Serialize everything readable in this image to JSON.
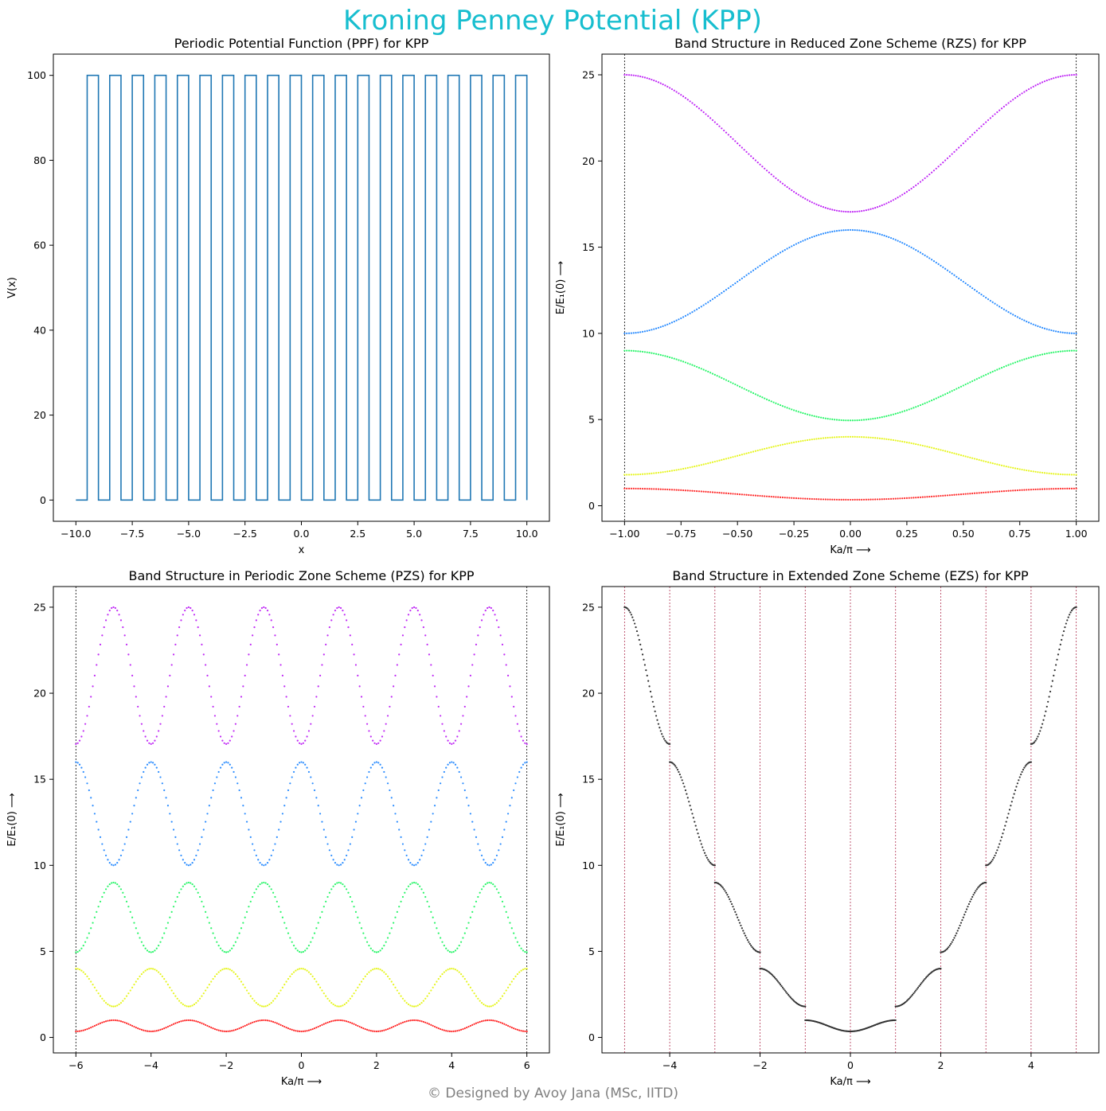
{
  "figure": {
    "title": "Kroning Penney Potential (KPP)",
    "title_color": "#17becf",
    "footer": "© Designed by Avoy Jana (MSc, IITD)",
    "footer_color": "#808080"
  },
  "band_colors": [
    "#ff2a2a",
    "#e6f51f",
    "#2af56a",
    "#2a8cff",
    "#c02af5"
  ],
  "chart_data": [
    {
      "type": "line",
      "title": "Periodic Potential Function (PPF) for KPP",
      "xlabel": "x",
      "ylabel": "V(x)",
      "xlim": [
        -11.0,
        11.0
      ],
      "ylim": [
        -5,
        105
      ],
      "xticks": [
        -10.0,
        -7.5,
        -5.0,
        -2.5,
        0.0,
        2.5,
        5.0,
        7.5,
        10.0
      ],
      "xtick_labels": [
        "−10.0",
        "−7.5",
        "−5.0",
        "−2.5",
        "0.0",
        "2.5",
        "5.0",
        "7.5",
        "10.0"
      ],
      "yticks": [
        0,
        20,
        40,
        60,
        80,
        100
      ],
      "ytick_labels": [
        "0",
        "20",
        "40",
        "60",
        "80",
        "100"
      ],
      "series": [
        {
          "color": "#1f77b4",
          "potential": {
            "V0": 100,
            "x_start": -10,
            "x_end": 10,
            "barrier_starts": [
              -9.5,
              -8.5,
              -7.5,
              -6.5,
              -5.5,
              -4.5,
              -3.5,
              -2.5,
              -1.5,
              -0.5,
              0.5,
              1.5,
              2.5,
              3.5,
              4.5,
              5.5,
              6.5,
              7.5,
              8.5,
              9.5
            ],
            "barrier_width": 0.5
          }
        }
      ],
      "grid": false
    },
    {
      "type": "scatter",
      "title": "Band Structure in Reduced Zone Scheme (RZS) for KPP",
      "xlabel": "Ka/π  ⟶",
      "ylabel": "E/E₁(0)  ⟶",
      "xlim": [
        -1.1,
        1.1
      ],
      "ylim": [
        -0.9,
        26.2
      ],
      "xticks": [
        -1.0,
        -0.75,
        -0.5,
        -0.25,
        0.0,
        0.25,
        0.5,
        0.75,
        1.0
      ],
      "xtick_labels": [
        "−1.00",
        "−0.75",
        "−0.50",
        "−0.25",
        "0.00",
        "0.25",
        "0.50",
        "0.75",
        "1.00"
      ],
      "yticks": [
        0,
        5,
        10,
        15,
        20,
        25
      ],
      "ytick_labels": [
        "0",
        "5",
        "10",
        "15",
        "20",
        "25"
      ],
      "vlines": [
        -1,
        1
      ],
      "bands": [
        {
          "band": 1,
          "E_at_0": 0.35,
          "E_at_edge": 1.0
        },
        {
          "band": 2,
          "E_at_0": 4.0,
          "E_at_edge": 1.8
        },
        {
          "band": 3,
          "E_at_0": 4.95,
          "E_at_edge": 9.0
        },
        {
          "band": 4,
          "E_at_0": 16.0,
          "E_at_edge": 10.0
        },
        {
          "band": 5,
          "E_at_0": 17.05,
          "E_at_edge": 25.0
        }
      ],
      "grid": false
    },
    {
      "type": "scatter",
      "title": "Band Structure in Periodic Zone Scheme (PZS) for KPP",
      "xlabel": "Ka/π  ⟶",
      "ylabel": "E/E₁(0)  ⟶",
      "xlim": [
        -6.6,
        6.6
      ],
      "ylim": [
        -0.9,
        26.2
      ],
      "xticks": [
        -6,
        -4,
        -2,
        0,
        2,
        4,
        6
      ],
      "xtick_labels": [
        "−6",
        "−4",
        "−2",
        "0",
        "2",
        "4",
        "6"
      ],
      "yticks": [
        0,
        5,
        10,
        15,
        20,
        25
      ],
      "ytick_labels": [
        "0",
        "5",
        "10",
        "15",
        "20",
        "25"
      ],
      "vlines": [
        -6,
        6
      ],
      "k_range": [
        -6,
        6
      ],
      "grid": false
    },
    {
      "type": "scatter",
      "title": "Band Structure in Extended Zone Scheme (EZS) for KPP",
      "xlabel": "Ka/π  ⟶",
      "ylabel": "E/E₁(0)  ⟶",
      "xlim": [
        -5.5,
        5.5
      ],
      "ylim": [
        -0.9,
        26.2
      ],
      "xticks": [
        -4,
        -2,
        0,
        2,
        4
      ],
      "xtick_labels": [
        "−4",
        "−2",
        "0",
        "2",
        "4"
      ],
      "yticks": [
        0,
        5,
        10,
        15,
        20,
        25
      ],
      "ytick_labels": [
        "0",
        "5",
        "10",
        "15",
        "20",
        "25"
      ],
      "vlines": [
        -5,
        -4,
        -3,
        -2,
        -1,
        0,
        1,
        2,
        3,
        4,
        5
      ],
      "vline_color": "#b03050",
      "point_color": "#303030",
      "grid": false
    }
  ]
}
